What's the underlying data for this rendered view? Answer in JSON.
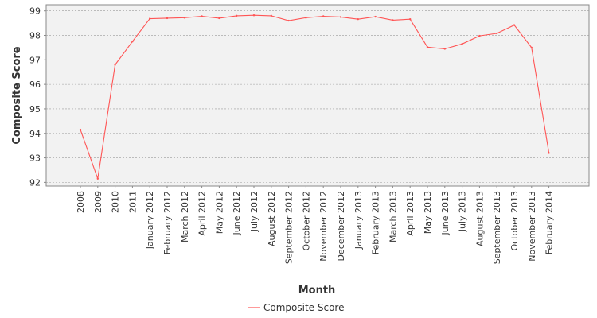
{
  "chart_data": {
    "type": "line",
    "title": "",
    "xlabel": "Month",
    "ylabel": "Composite Score",
    "ylim": [
      91.85,
      99.25
    ],
    "yticks": [
      92,
      93,
      94,
      95,
      96,
      97,
      98,
      99
    ],
    "grid": true,
    "legend_position": "bottom-center",
    "categories": [
      "2008",
      "2009",
      "2010",
      "2011",
      "January 2012",
      "February 2012",
      "March 2012",
      "April 2012",
      "May 2012",
      "June 2012",
      "July 2012",
      "August 2012",
      "September 2012",
      "October 2012",
      "November 2012",
      "December 2012",
      "January 2013",
      "February 2013",
      "March 2013",
      "April 2013",
      "May 2013",
      "June 2013",
      "July 2013",
      "August 2013",
      "September 2013",
      "October 2013",
      "November 2013",
      "February 2014"
    ],
    "series": [
      {
        "name": "Composite Score",
        "color": "#ff5555",
        "values": [
          94.15,
          92.15,
          96.8,
          97.75,
          98.68,
          98.7,
          98.72,
          98.78,
          98.7,
          98.8,
          98.82,
          98.8,
          98.6,
          98.72,
          98.78,
          98.75,
          98.66,
          98.76,
          98.62,
          98.66,
          97.52,
          97.45,
          97.65,
          97.98,
          98.08,
          98.42,
          97.5,
          93.2
        ]
      }
    ]
  }
}
